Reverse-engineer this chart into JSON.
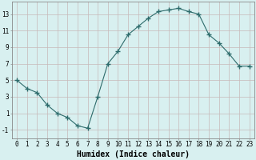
{
  "x": [
    0,
    1,
    2,
    3,
    4,
    5,
    6,
    7,
    8,
    9,
    10,
    11,
    12,
    13,
    14,
    15,
    16,
    17,
    18,
    19,
    20,
    21,
    22,
    23
  ],
  "y": [
    5,
    4,
    3.5,
    2,
    1,
    0.5,
    -0.5,
    -0.8,
    3,
    7,
    8.5,
    10.5,
    11.5,
    12.5,
    13.3,
    13.5,
    13.7,
    13.3,
    13.0,
    10.5,
    9.5,
    8.2,
    6.7,
    6.7
  ],
  "line_color": "#2d6b6b",
  "marker": "+",
  "marker_size": 4,
  "bg_color": "#d8f0f0",
  "grid_color": "#c8b8b8",
  "xlabel": "Humidex (Indice chaleur)",
  "xlabel_fontsize": 7,
  "ytick_values": [
    -1,
    1,
    3,
    5,
    7,
    9,
    11,
    13
  ],
  "xtick_values": [
    0,
    1,
    2,
    3,
    4,
    5,
    6,
    7,
    8,
    9,
    10,
    11,
    12,
    13,
    14,
    15,
    16,
    17,
    18,
    19,
    20,
    21,
    22,
    23
  ],
  "xlim": [
    -0.5,
    23.5
  ],
  "ylim": [
    -2,
    14.5
  ],
  "tick_fontsize": 5.5,
  "spine_color": "#888888"
}
